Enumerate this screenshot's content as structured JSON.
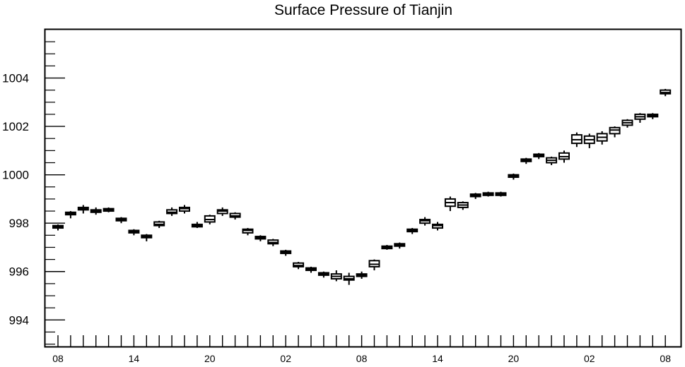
{
  "chart_data": {
    "type": "box",
    "title": "Surface Pressure of Tianjin",
    "xlabel": "",
    "ylabel": "",
    "ylim": [
      992.9,
      1006.0
    ],
    "ytick_values": [
      994,
      996,
      998,
      1000,
      1002,
      1004
    ],
    "ytick_labels": [
      "994",
      "996",
      "998",
      "1000",
      "1002",
      "1004"
    ],
    "xtick_labels": [
      "08",
      "14",
      "20",
      "02",
      "08",
      "14",
      "20",
      "02",
      "08"
    ],
    "xtick_positions": [
      0,
      6,
      12,
      18,
      24,
      30,
      36,
      42,
      48
    ],
    "grid": false,
    "boxes": [
      {
        "x": 0,
        "min": 997.7,
        "q1": 997.8,
        "median": 997.85,
        "q3": 997.9,
        "max": 997.95
      },
      {
        "x": 1,
        "min": 998.2,
        "q1": 998.35,
        "median": 998.4,
        "q3": 998.45,
        "max": 998.5
      },
      {
        "x": 2,
        "min": 998.4,
        "q1": 998.55,
        "median": 998.6,
        "q3": 998.65,
        "max": 998.75
      },
      {
        "x": 3,
        "min": 998.35,
        "q1": 998.45,
        "median": 998.5,
        "q3": 998.55,
        "max": 998.65
      },
      {
        "x": 4,
        "min": 998.45,
        "q1": 998.5,
        "median": 998.55,
        "q3": 998.6,
        "max": 998.65
      },
      {
        "x": 5,
        "min": 998.0,
        "q1": 998.1,
        "median": 998.15,
        "q3": 998.2,
        "max": 998.25
      },
      {
        "x": 6,
        "min": 997.5,
        "q1": 997.6,
        "median": 997.65,
        "q3": 997.7,
        "max": 997.75
      },
      {
        "x": 7,
        "min": 997.25,
        "q1": 997.4,
        "median": 997.45,
        "q3": 997.5,
        "max": 997.55
      },
      {
        "x": 8,
        "min": 997.8,
        "q1": 997.9,
        "median": 997.95,
        "q3": 998.05,
        "max": 998.1
      },
      {
        "x": 9,
        "min": 998.3,
        "q1": 998.4,
        "median": 998.45,
        "q3": 998.55,
        "max": 998.65
      },
      {
        "x": 10,
        "min": 998.4,
        "q1": 998.5,
        "median": 998.6,
        "q3": 998.65,
        "max": 998.75
      },
      {
        "x": 11,
        "min": 997.8,
        "q1": 997.85,
        "median": 997.9,
        "q3": 997.95,
        "max": 998.05
      },
      {
        "x": 12,
        "min": 997.95,
        "q1": 998.05,
        "median": 998.15,
        "q3": 998.3,
        "max": 998.35
      },
      {
        "x": 13,
        "min": 998.3,
        "q1": 998.4,
        "median": 998.5,
        "q3": 998.55,
        "max": 998.65
      },
      {
        "x": 14,
        "min": 998.15,
        "q1": 998.25,
        "median": 998.3,
        "q3": 998.4,
        "max": 998.45
      },
      {
        "x": 15,
        "min": 997.5,
        "q1": 997.6,
        "median": 997.7,
        "q3": 997.75,
        "max": 997.8
      },
      {
        "x": 16,
        "min": 997.25,
        "q1": 997.35,
        "median": 997.4,
        "q3": 997.45,
        "max": 997.5
      },
      {
        "x": 17,
        "min": 997.05,
        "q1": 997.15,
        "median": 997.2,
        "q3": 997.3,
        "max": 997.35
      },
      {
        "x": 18,
        "min": 996.65,
        "q1": 996.75,
        "median": 996.8,
        "q3": 996.85,
        "max": 996.9
      },
      {
        "x": 19,
        "min": 996.1,
        "q1": 996.2,
        "median": 996.25,
        "q3": 996.35,
        "max": 996.4
      },
      {
        "x": 20,
        "min": 995.95,
        "q1": 996.05,
        "median": 996.1,
        "q3": 996.15,
        "max": 996.2
      },
      {
        "x": 21,
        "min": 995.75,
        "q1": 995.85,
        "median": 995.9,
        "q3": 995.95,
        "max": 996.0
      },
      {
        "x": 22,
        "min": 995.6,
        "q1": 995.7,
        "median": 995.8,
        "q3": 995.9,
        "max": 996.05
      },
      {
        "x": 23,
        "min": 995.45,
        "q1": 995.65,
        "median": 995.7,
        "q3": 995.8,
        "max": 995.95
      },
      {
        "x": 24,
        "min": 995.7,
        "q1": 995.8,
        "median": 995.85,
        "q3": 995.9,
        "max": 996.0
      },
      {
        "x": 25,
        "min": 996.05,
        "q1": 996.2,
        "median": 996.3,
        "q3": 996.45,
        "max": 996.5
      },
      {
        "x": 26,
        "min": 996.9,
        "q1": 996.95,
        "median": 997.0,
        "q3": 997.05,
        "max": 997.1
      },
      {
        "x": 27,
        "min": 996.95,
        "q1": 997.05,
        "median": 997.1,
        "q3": 997.15,
        "max": 997.2
      },
      {
        "x": 28,
        "min": 997.55,
        "q1": 997.65,
        "median": 997.7,
        "q3": 997.75,
        "max": 997.8
      },
      {
        "x": 29,
        "min": 997.9,
        "q1": 998.0,
        "median": 998.1,
        "q3": 998.15,
        "max": 998.25
      },
      {
        "x": 30,
        "min": 997.7,
        "q1": 997.8,
        "median": 997.9,
        "q3": 997.95,
        "max": 998.05
      },
      {
        "x": 31,
        "min": 998.5,
        "q1": 998.7,
        "median": 998.85,
        "q3": 999.0,
        "max": 999.1
      },
      {
        "x": 32,
        "min": 998.55,
        "q1": 998.65,
        "median": 998.75,
        "q3": 998.85,
        "max": 998.9
      },
      {
        "x": 33,
        "min": 999.0,
        "q1": 999.1,
        "median": 999.15,
        "q3": 999.2,
        "max": 999.25
      },
      {
        "x": 34,
        "min": 999.1,
        "q1": 999.15,
        "median": 999.2,
        "q3": 999.25,
        "max": 999.3
      },
      {
        "x": 35,
        "min": 999.1,
        "q1": 999.15,
        "median": 999.2,
        "q3": 999.25,
        "max": 999.3
      },
      {
        "x": 36,
        "min": 999.8,
        "q1": 999.9,
        "median": 999.95,
        "q3": 1000.0,
        "max": 1000.05
      },
      {
        "x": 37,
        "min": 1000.45,
        "q1": 1000.55,
        "median": 1000.6,
        "q3": 1000.65,
        "max": 1000.7
      },
      {
        "x": 38,
        "min": 1000.65,
        "q1": 1000.75,
        "median": 1000.8,
        "q3": 1000.85,
        "max": 1000.9
      },
      {
        "x": 39,
        "min": 1000.4,
        "q1": 1000.5,
        "median": 1000.6,
        "q3": 1000.7,
        "max": 1000.75
      },
      {
        "x": 40,
        "min": 1000.5,
        "q1": 1000.65,
        "median": 1000.75,
        "q3": 1000.9,
        "max": 1001.0
      },
      {
        "x": 41,
        "min": 1001.15,
        "q1": 1001.3,
        "median": 1001.45,
        "q3": 1001.65,
        "max": 1001.75
      },
      {
        "x": 42,
        "min": 1001.1,
        "q1": 1001.3,
        "median": 1001.45,
        "q3": 1001.6,
        "max": 1001.7
      },
      {
        "x": 43,
        "min": 1001.25,
        "q1": 1001.4,
        "median": 1001.55,
        "q3": 1001.7,
        "max": 1001.8
      },
      {
        "x": 44,
        "min": 1001.55,
        "q1": 1001.7,
        "median": 1001.85,
        "q3": 1001.95,
        "max": 1002.0
      },
      {
        "x": 45,
        "min": 1001.95,
        "q1": 1002.05,
        "median": 1002.15,
        "q3": 1002.25,
        "max": 1002.3
      },
      {
        "x": 46,
        "min": 1002.15,
        "q1": 1002.3,
        "median": 1002.4,
        "q3": 1002.5,
        "max": 1002.55
      },
      {
        "x": 47,
        "min": 1002.3,
        "q1": 1002.4,
        "median": 1002.45,
        "q3": 1002.5,
        "max": 1002.55
      },
      {
        "x": 48,
        "min": 1003.25,
        "q1": 1003.35,
        "median": 1003.4,
        "q3": 1003.5,
        "max": 1003.55
      }
    ]
  }
}
